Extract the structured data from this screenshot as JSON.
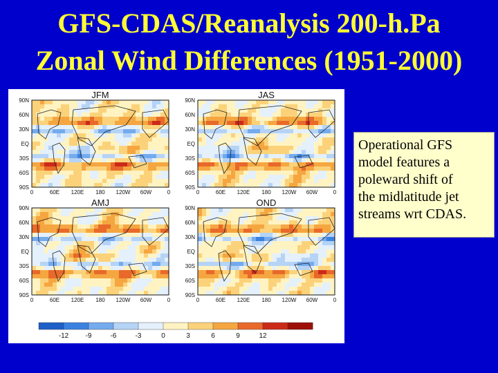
{
  "slide": {
    "title_line1": "GFS-CDAS/Reanalysis 200-h.Pa",
    "title_line2": "Zonal Wind Differences (1951-2000)",
    "note_lines": [
      "Operational GFS",
      "model features a",
      "poleward shift of",
      "the midlatitude jet",
      "streams wrt CDAS."
    ]
  },
  "figure": {
    "panels": [
      {
        "title": "JFM"
      },
      {
        "title": "JAS"
      },
      {
        "title": "AMJ"
      },
      {
        "title": "OND"
      }
    ],
    "lat_labels": [
      "90N",
      "60N",
      "30N",
      "EQ",
      "30S",
      "60S",
      "90S"
    ],
    "lon_labels": [
      "0",
      "60E",
      "120E",
      "180",
      "120W",
      "60W",
      "0"
    ],
    "colorbar_labels": [
      "-12",
      "-9",
      "-6",
      "-3",
      "0",
      "3",
      "6",
      "9",
      "12"
    ],
    "colorbar_colors": [
      "#1f5fc8",
      "#3b82e0",
      "#74aaee",
      "#b5d3f5",
      "#e4f0fb",
      "#fff3c2",
      "#fbd27a",
      "#f5a640",
      "#e8692a",
      "#cc2a18",
      "#9e0f0a"
    ]
  }
}
